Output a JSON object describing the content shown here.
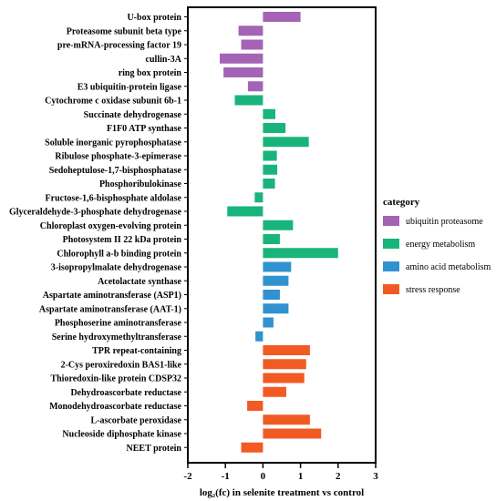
{
  "chart_data": {
    "type": "bar",
    "orientation": "horizontal",
    "xlabel": "log₂(fc) in selenite treatment  vs control",
    "xlim": [
      -2,
      3
    ],
    "xticks": [
      "-2",
      "-1",
      "0",
      "1",
      "2",
      "3"
    ],
    "legend_title": "category",
    "legend_position": "right",
    "series": [
      {
        "name": "ubiquitin proteasome",
        "color": "#a563b5"
      },
      {
        "name": "energy metabolism",
        "color": "#19b47c"
      },
      {
        "name": "amino acid metabolism",
        "color": "#3192d0"
      },
      {
        "name": "stress response",
        "color": "#f25a24"
      }
    ],
    "categories": [
      "U-box protein",
      "Proteasome subunit beta type",
      "pre-mRNA-processing factor 19",
      "cullin-3A",
      "ring box protein",
      "E3 ubiquitin-protein ligase",
      "Cytochrome c oxidase subunit 6b-1",
      "Succinate dehydrogenase",
      "F1F0 ATP synthase",
      "Soluble inorganic pyrophosphatase",
      "Ribulose phosphate-3-epimerase",
      "Sedoheptulose-1,7-bisphosphatase",
      "Phosphoribulokinase",
      "Fructose-1,6-bisphosphate aldolase",
      "Glyceraldehyde-3-phosphate dehydrogenase",
      "Chloroplast oxygen-evolving protein",
      "Photosystem II 22 kDa protein",
      "Chlorophyll a-b binding protein",
      "3-isopropylmalate dehydrogenase",
      "Acetolactate synthase",
      "Aspartate aminotransferase (ASP1)",
      "Aspartate aminotransferase (AAT-1)",
      "Phosphoserine aminotransferase",
      "Serine hydroxymethyltransferase",
      "TPR repeat-containing",
      "2-Cys peroxiredoxin BAS1-like",
      "Thioredoxin-like protein CDSP32",
      "Dehydroascorbate reductase",
      "Monodehydroascorbate reductase",
      "L-ascorbate peroxidase",
      "Nucleoside diphosphate kinase",
      "NEET protein"
    ],
    "values": [
      1.0,
      -0.65,
      -0.58,
      -1.15,
      -1.05,
      -0.4,
      -0.75,
      0.33,
      0.6,
      1.22,
      0.37,
      0.38,
      0.32,
      -0.22,
      -0.95,
      0.8,
      0.45,
      2.0,
      0.75,
      0.68,
      0.45,
      0.68,
      0.28,
      -0.2,
      1.25,
      1.15,
      1.1,
      0.62,
      -0.42,
      1.25,
      1.55,
      -0.58
    ],
    "series_index": [
      0,
      0,
      0,
      0,
      0,
      0,
      1,
      1,
      1,
      1,
      1,
      1,
      1,
      1,
      1,
      1,
      1,
      1,
      2,
      2,
      2,
      2,
      2,
      2,
      3,
      3,
      3,
      3,
      3,
      3,
      3,
      3
    ]
  }
}
